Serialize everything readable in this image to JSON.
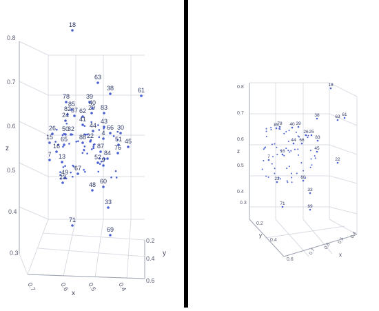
{
  "colors": {
    "marker": "#4a5fcf",
    "divider": "#000000",
    "grid": "#d9dce3",
    "label": "#2a3566"
  },
  "chart_data": [
    {
      "type": "scatter",
      "projection": "3d",
      "xlabel": "x",
      "ylabel": "y",
      "zlabel": "z",
      "x_ticks": [
        "0.7",
        "0.6",
        "0.5",
        "0.4"
      ],
      "y_ticks": [
        "0.2",
        "0.4",
        "0.6"
      ],
      "z_ticks": [
        "0.8",
        "0.7",
        "0.6",
        "0.5",
        "0.4",
        "0.3"
      ],
      "zlim": [
        0.3,
        0.8
      ],
      "points": [
        {
          "label": "18",
          "z": 0.82
        },
        {
          "label": "63",
          "z": 0.68
        },
        {
          "label": "38",
          "z": 0.66
        },
        {
          "label": "61",
          "z": 0.66
        },
        {
          "label": "78",
          "z": 0.64
        },
        {
          "label": "39",
          "z": 0.64
        },
        {
          "label": "85",
          "z": 0.63
        },
        {
          "label": "40",
          "z": 0.63
        },
        {
          "label": "29",
          "z": 0.62
        },
        {
          "label": "83",
          "z": 0.62
        },
        {
          "label": "82",
          "z": 0.62
        },
        {
          "label": "37",
          "z": 0.62
        },
        {
          "label": "62",
          "z": 0.62
        },
        {
          "label": "24",
          "z": 0.61
        },
        {
          "label": "43",
          "z": 0.6
        },
        {
          "label": "26",
          "z": 0.59
        },
        {
          "label": "50",
          "z": 0.59
        },
        {
          "label": "32",
          "z": 0.59
        },
        {
          "label": "41",
          "z": 0.6
        },
        {
          "label": "44",
          "z": 0.59
        },
        {
          "label": "66",
          "z": 0.59
        },
        {
          "label": "30",
          "z": 0.59
        },
        {
          "label": "15",
          "z": 0.57
        },
        {
          "label": "65",
          "z": 0.57
        },
        {
          "label": "88",
          "z": 0.58
        },
        {
          "label": "22",
          "z": 0.58
        },
        {
          "label": "4",
          "z": 0.58
        },
        {
          "label": "51",
          "z": 0.57
        },
        {
          "label": "45",
          "z": 0.56
        },
        {
          "label": "16",
          "z": 0.56
        },
        {
          "label": "87",
          "z": 0.56
        },
        {
          "label": "76",
          "z": 0.55
        },
        {
          "label": "7",
          "z": 0.54
        },
        {
          "label": "13",
          "z": 0.53
        },
        {
          "label": "84",
          "z": 0.55
        },
        {
          "label": "52",
          "z": 0.53
        },
        {
          "label": "49",
          "z": 0.51
        },
        {
          "label": "23",
          "z": 0.49
        },
        {
          "label": "67",
          "z": 0.51
        },
        {
          "label": "9",
          "z": 0.52
        },
        {
          "label": "60",
          "z": 0.49
        },
        {
          "label": "48",
          "z": 0.47
        },
        {
          "label": "33",
          "z": 0.44
        },
        {
          "label": "71",
          "z": 0.36
        },
        {
          "label": "69",
          "z": 0.34
        }
      ]
    },
    {
      "type": "scatter",
      "projection": "3d",
      "xlabel": "x",
      "ylabel": "y",
      "zlabel": "z",
      "x_ticks": [
        "0.4",
        "0.5",
        "0.6",
        "0.7"
      ],
      "y_ticks": [
        "0.2",
        "0.4",
        "0.6"
      ],
      "z_ticks": [
        "0.8",
        "0.7",
        "0.6",
        "0.5",
        "0.4",
        "0.3"
      ],
      "zlim": [
        0.3,
        0.8
      ],
      "points": [
        {
          "label": "18",
          "z": 0.82
        },
        {
          "label": "63",
          "z": 0.68
        },
        {
          "label": "61",
          "z": 0.68
        },
        {
          "label": "38",
          "z": 0.66
        },
        {
          "label": "78",
          "z": 0.64
        },
        {
          "label": "40",
          "z": 0.64
        },
        {
          "label": "39",
          "z": 0.64
        },
        {
          "label": "85",
          "z": 0.63
        },
        {
          "label": "83",
          "z": 0.6
        },
        {
          "label": "25",
          "z": 0.6
        },
        {
          "label": "26",
          "z": 0.58
        },
        {
          "label": "44",
          "z": 0.57
        },
        {
          "label": "66",
          "z": 0.56
        },
        {
          "label": "45",
          "z": 0.53
        },
        {
          "label": "22",
          "z": 0.5
        },
        {
          "label": "16",
          "z": 0.52
        },
        {
          "label": "7",
          "z": 0.51
        },
        {
          "label": "23",
          "z": 0.46
        },
        {
          "label": "60",
          "z": 0.46
        },
        {
          "label": "33",
          "z": 0.43
        },
        {
          "label": "71",
          "z": 0.36
        },
        {
          "label": "69",
          "z": 0.36
        }
      ]
    }
  ]
}
